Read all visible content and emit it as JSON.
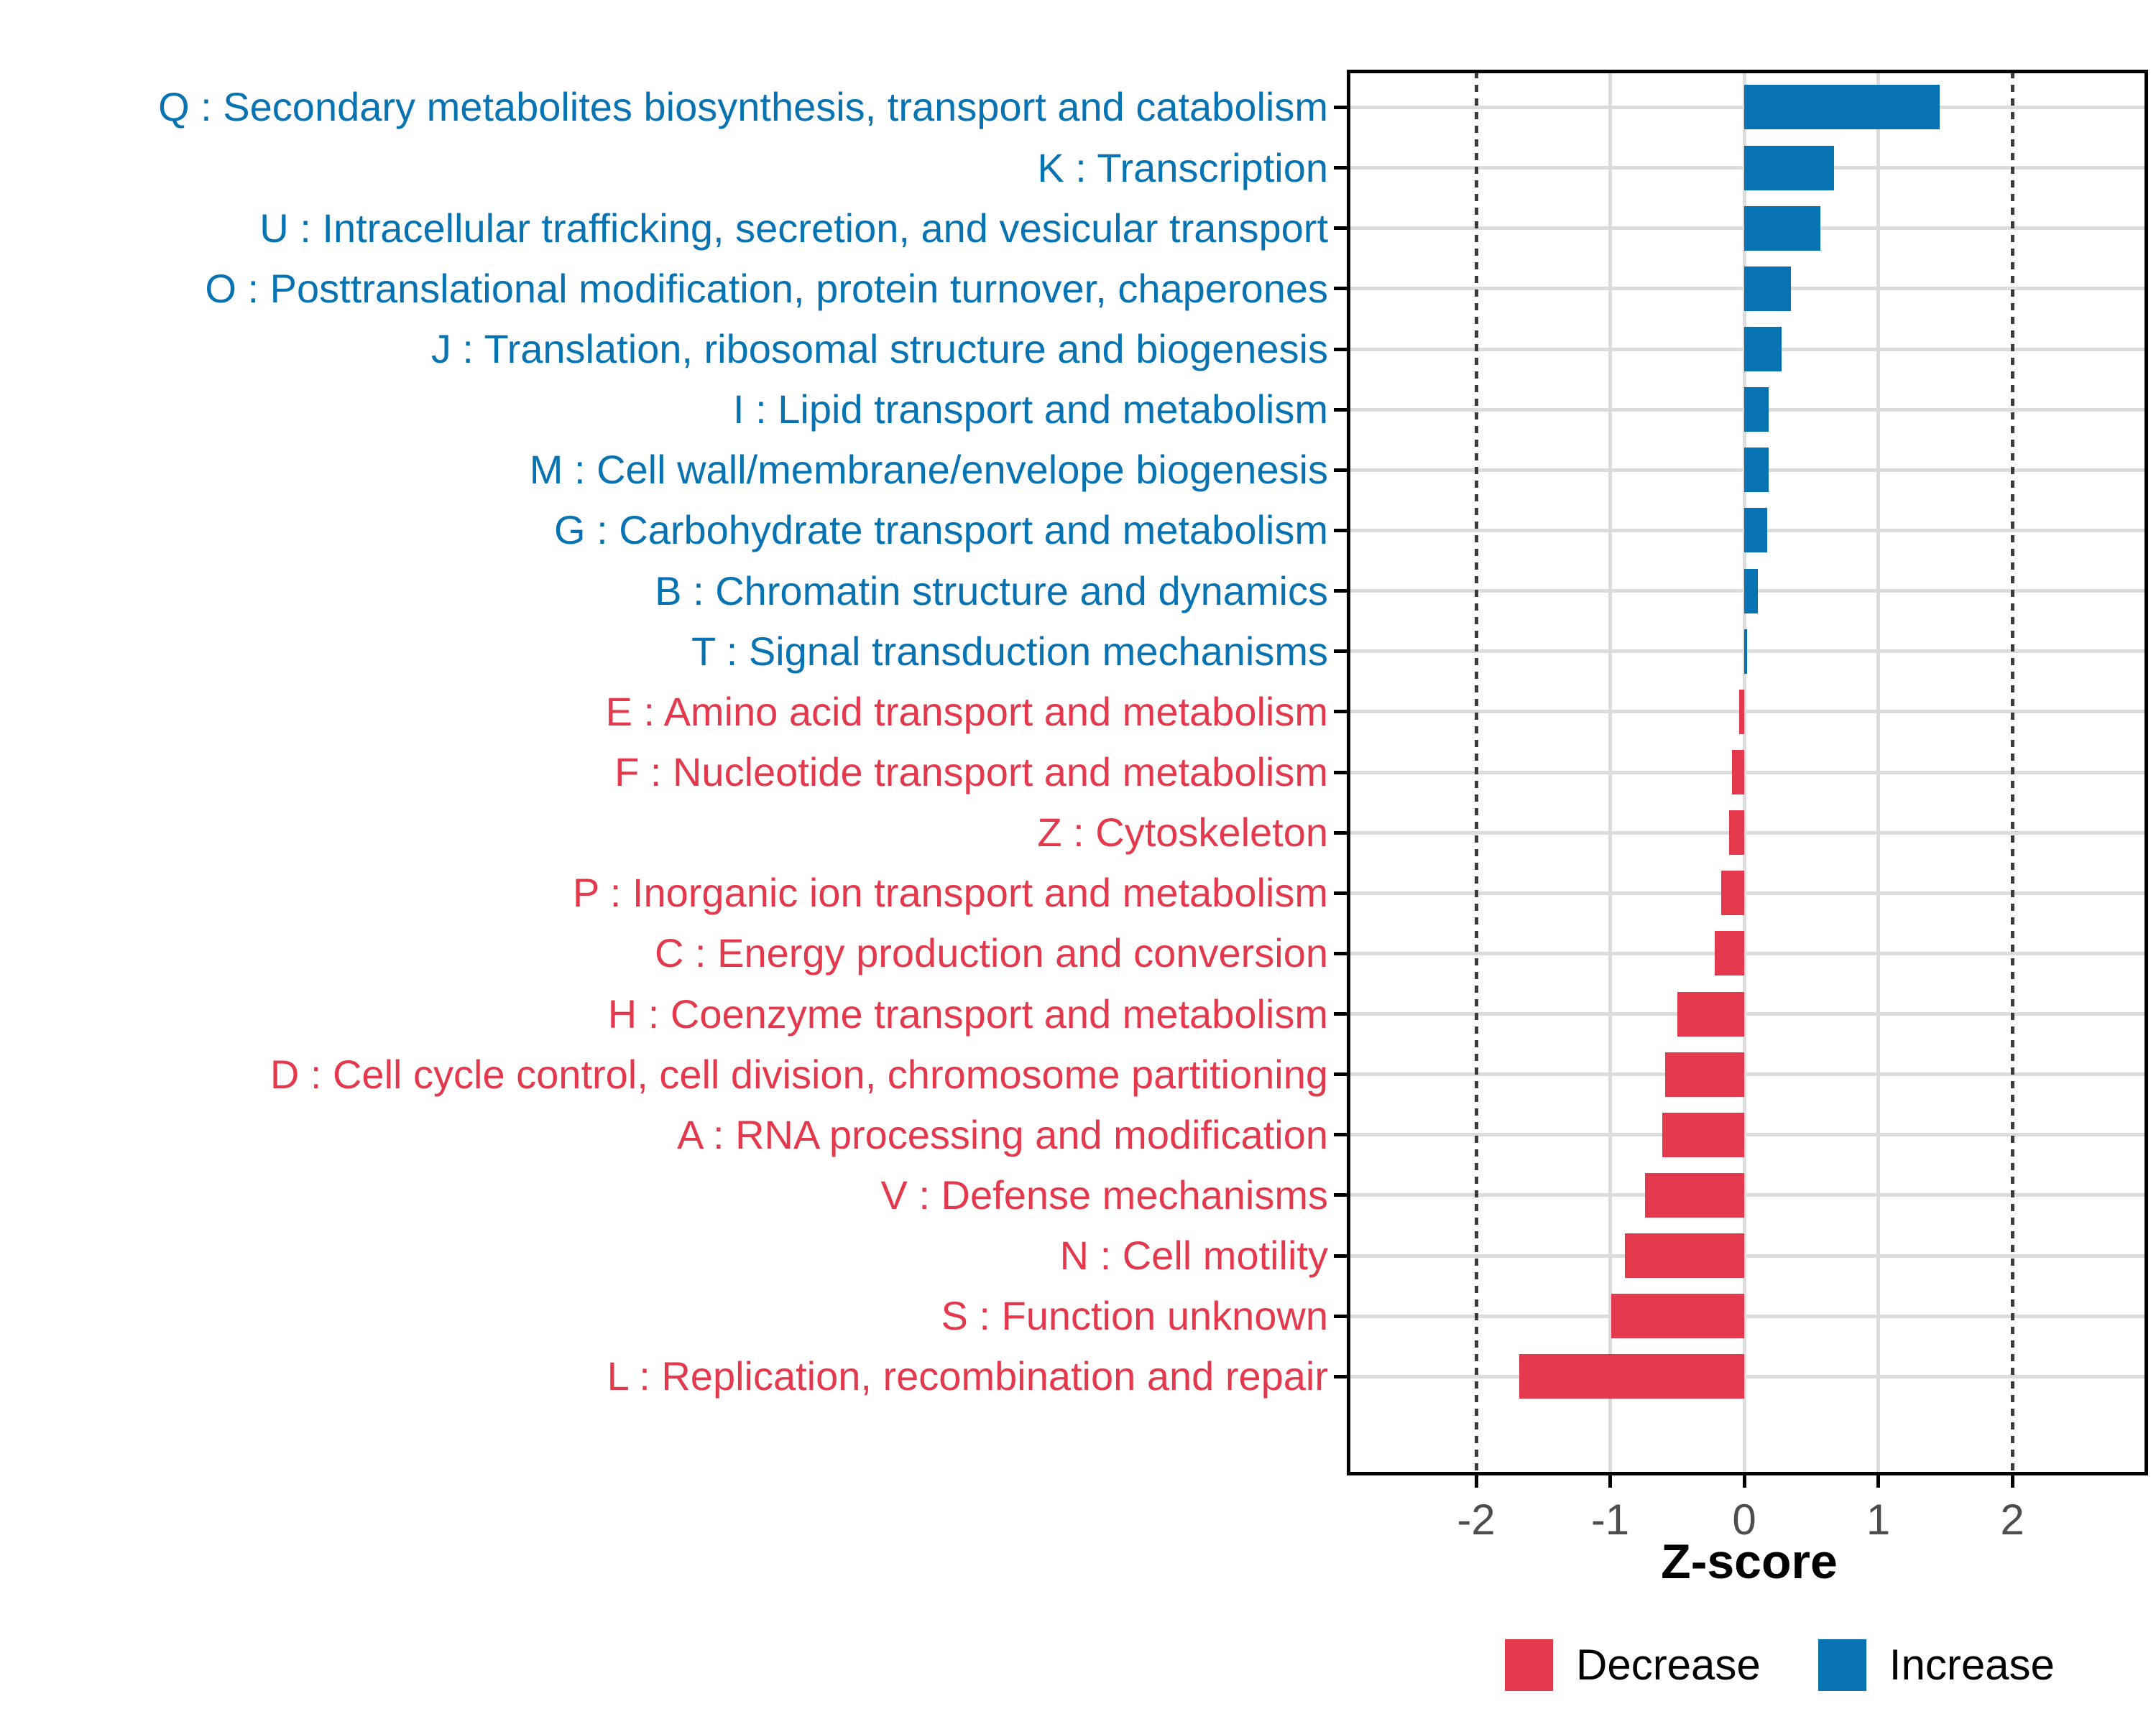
{
  "figure": {
    "background": "#ffffff"
  },
  "colors": {
    "increase": "#0773b2",
    "decrease": "#e4394c",
    "grid": "#dcdcdc",
    "dashed_guide": "#3c3c3c",
    "axis_text": "#4d4d4d",
    "panel_border": "#000000"
  },
  "chart_data": {
    "type": "bar",
    "orientation": "horizontal",
    "title": "",
    "xlabel": "Z-score",
    "ylabel": "",
    "xlim": [
      -2.95,
      3.0
    ],
    "x_ticks": [
      -2,
      -1,
      0,
      1,
      2
    ],
    "x_tick_labels": [
      "-2",
      "-1",
      "0",
      "1",
      "2"
    ],
    "dashed_reference_lines": [
      -2,
      2
    ],
    "grid": "major",
    "legend_position": "bottom",
    "legend": [
      {
        "label": "Decrease",
        "color": "#e4394c"
      },
      {
        "label": "Increase",
        "color": "#0773b2"
      }
    ],
    "categories": [
      {
        "label": "Q : Secondary metabolites biosynthesis, transport and catabolism",
        "value": 1.46,
        "direction": "Increase"
      },
      {
        "label": "K : Transcription",
        "value": 0.67,
        "direction": "Increase"
      },
      {
        "label": "U : Intracellular trafficking, secretion, and vesicular transport",
        "value": 0.57,
        "direction": "Increase"
      },
      {
        "label": "O : Posttranslational modification, protein turnover, chaperones",
        "value": 0.35,
        "direction": "Increase"
      },
      {
        "label": "J : Translation, ribosomal structure and biogenesis",
        "value": 0.28,
        "direction": "Increase"
      },
      {
        "label": "I : Lipid transport and metabolism",
        "value": 0.18,
        "direction": "Increase"
      },
      {
        "label": "M : Cell wall/membrane/envelope biogenesis",
        "value": 0.18,
        "direction": "Increase"
      },
      {
        "label": "G : Carbohydrate transport and metabolism",
        "value": 0.17,
        "direction": "Increase"
      },
      {
        "label": "B : Chromatin structure and dynamics",
        "value": 0.1,
        "direction": "Increase"
      },
      {
        "label": "T : Signal transduction mechanisms",
        "value": 0.02,
        "direction": "Increase"
      },
      {
        "label": "E : Amino acid transport and metabolism",
        "value": -0.04,
        "direction": "Decrease"
      },
      {
        "label": "F : Nucleotide transport and metabolism",
        "value": -0.09,
        "direction": "Decrease"
      },
      {
        "label": "Z : Cytoskeleton",
        "value": -0.11,
        "direction": "Decrease"
      },
      {
        "label": "P : Inorganic ion transport and metabolism",
        "value": -0.17,
        "direction": "Decrease"
      },
      {
        "label": "C : Energy production and conversion",
        "value": -0.22,
        "direction": "Decrease"
      },
      {
        "label": "H : Coenzyme transport and metabolism",
        "value": -0.5,
        "direction": "Decrease"
      },
      {
        "label": "D : Cell cycle control, cell division, chromosome partitioning",
        "value": -0.59,
        "direction": "Decrease"
      },
      {
        "label": "A : RNA processing and modification",
        "value": -0.61,
        "direction": "Decrease"
      },
      {
        "label": "V : Defense mechanisms",
        "value": -0.74,
        "direction": "Decrease"
      },
      {
        "label": "N : Cell motility",
        "value": -0.89,
        "direction": "Decrease"
      },
      {
        "label": "S : Function unknown",
        "value": -0.99,
        "direction": "Decrease"
      },
      {
        "label": "L : Replication, recombination and repair",
        "value": -1.68,
        "direction": "Decrease"
      }
    ]
  }
}
